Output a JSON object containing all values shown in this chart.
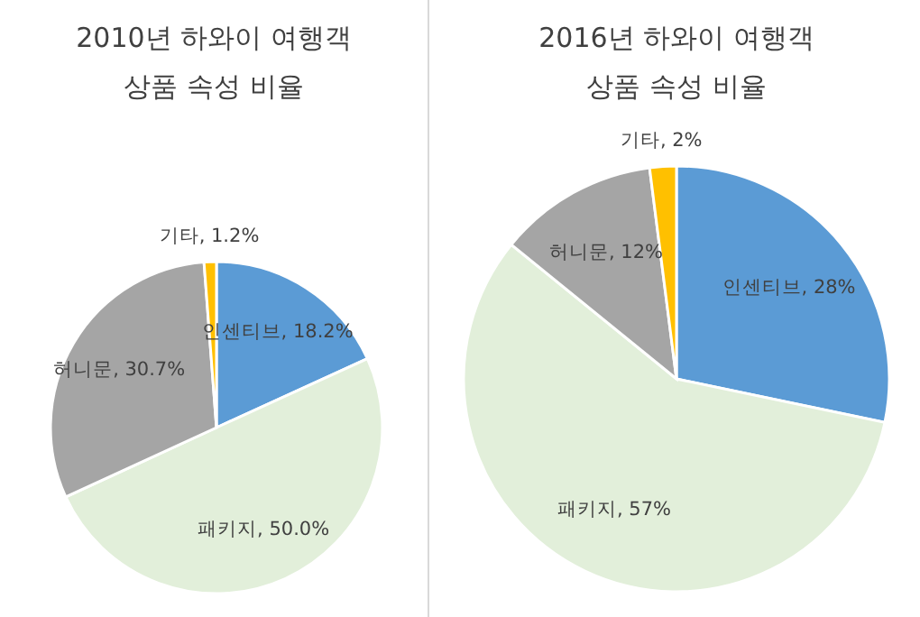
{
  "chart_data": [
    {
      "type": "pie",
      "title": "2010년 하와이 여행객\n상품 속성 비율",
      "categories": [
        "인센티브",
        "패키지",
        "허니문",
        "기타"
      ],
      "values": [
        18.2,
        50.0,
        30.7,
        1.2
      ],
      "value_labels": [
        "18.2%",
        "50.0%",
        "30.7%",
        "1.2%"
      ],
      "colors": [
        "#5b9bd5",
        "#e2efda",
        "#a5a5a5",
        "#ffc000"
      ],
      "legend": false
    },
    {
      "type": "pie",
      "title": "2016년 하와이 여행객\n상품 속성 비율",
      "categories": [
        "인센티브",
        "패키지",
        "허니문",
        "기타"
      ],
      "values": [
        28,
        57,
        12,
        2
      ],
      "value_labels": [
        "28%",
        "57%",
        "12%",
        "2%"
      ],
      "colors": [
        "#5b9bd5",
        "#e2efda",
        "#a5a5a5",
        "#ffc000"
      ],
      "legend": false
    }
  ]
}
